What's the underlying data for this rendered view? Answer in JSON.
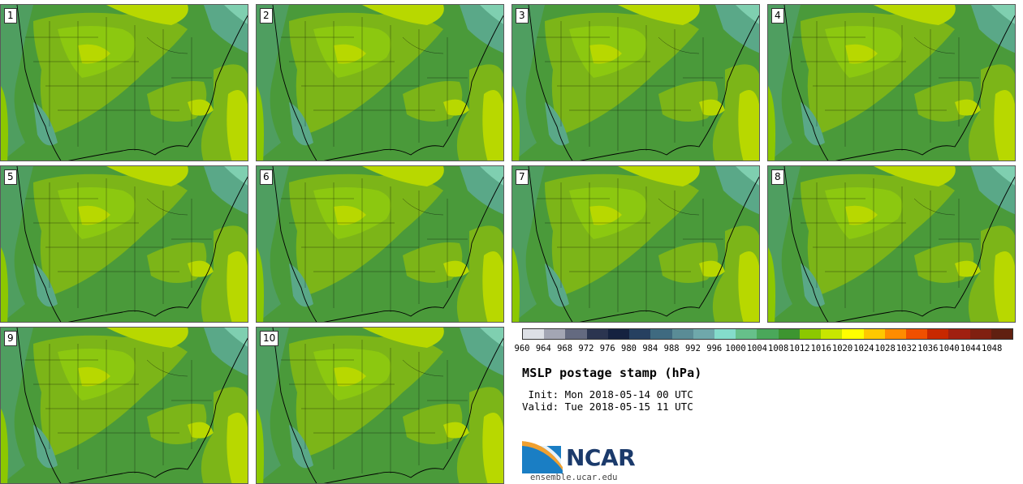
{
  "panels": [
    {
      "label": "1"
    },
    {
      "label": "2"
    },
    {
      "label": "3"
    },
    {
      "label": "4"
    },
    {
      "label": "5"
    },
    {
      "label": "6"
    },
    {
      "label": "7"
    },
    {
      "label": "8"
    },
    {
      "label": "9"
    },
    {
      "label": "10"
    }
  ],
  "colorbar": {
    "ticks": [
      "960",
      "964",
      "968",
      "972",
      "976",
      "980",
      "984",
      "988",
      "992",
      "996",
      "1000",
      "1004",
      "1008",
      "1012",
      "1016",
      "1020",
      "1024",
      "1028",
      "1032",
      "1036",
      "1040",
      "1044",
      "1048"
    ],
    "colors": [
      "#dde0e6",
      "#a3a6b4",
      "#646a80",
      "#2b3550",
      "#152240",
      "#264060",
      "#3f6a80",
      "#5a8c96",
      "#6fa8ab",
      "#84dccb",
      "#66c08a",
      "#4aa85a",
      "#3d9530",
      "#8cc800",
      "#c8e600",
      "#ffff00",
      "#ffc800",
      "#ff8c00",
      "#f05000",
      "#c82800",
      "#a02010",
      "#802010",
      "#602010"
    ]
  },
  "title": "MSLP postage stamp (hPa)",
  "init": " Init: Mon 2018-05-14 00 UTC",
  "valid": "Valid: Tue 2018-05-15 11 UTC",
  "logo": {
    "name": "NCAR",
    "url": "ensemble.ucar.edu"
  },
  "theme": {
    "dark_green": "#4a9a3a",
    "mid_green": "#7cb518",
    "light_green": "#b8d800",
    "teal": "#5aa888",
    "border": "#000000"
  }
}
